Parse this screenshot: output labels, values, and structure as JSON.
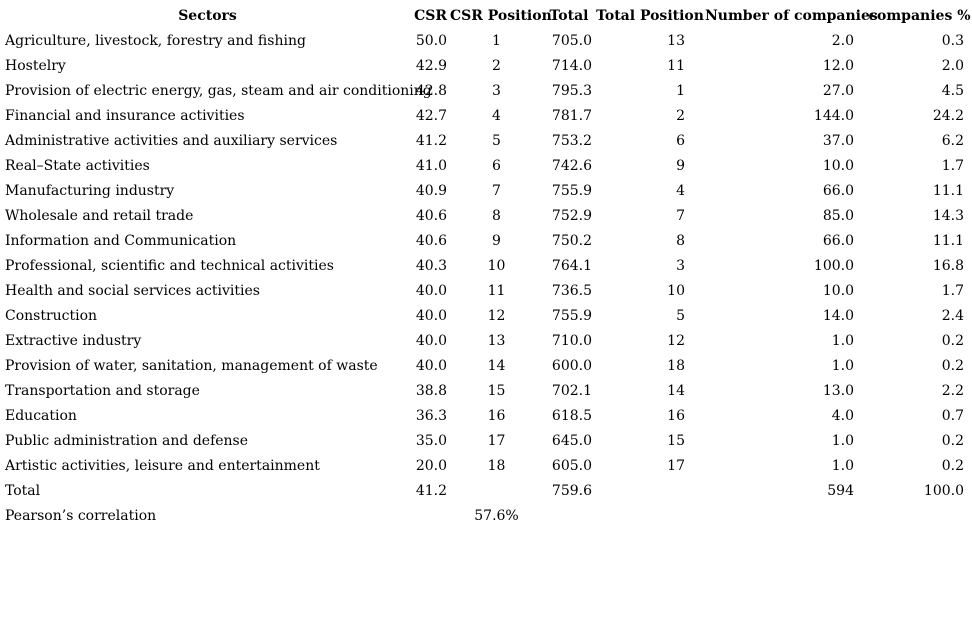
{
  "chart_data": {
    "type": "table",
    "columns": [
      "Sectors",
      "CSR",
      "CSR Position",
      "Total",
      "Total Position",
      "Number of companies",
      "companies %"
    ],
    "rows": [
      [
        "Agriculture, livestock, forestry and fishing",
        "50.0",
        "1",
        "705.0",
        "13",
        "2.0",
        "0.3"
      ],
      [
        "Hostelry",
        "42.9",
        "2",
        "714.0",
        "11",
        "12.0",
        "2.0"
      ],
      [
        "Provision of electric energy, gas, steam and air conditioning",
        "42.8",
        "3",
        "795.3",
        "1",
        "27.0",
        "4.5"
      ],
      [
        "Financial and insurance activities",
        "42.7",
        "4",
        "781.7",
        "2",
        "144.0",
        "24.2"
      ],
      [
        "Administrative activities and auxiliary services",
        "41.2",
        "5",
        "753.2",
        "6",
        "37.0",
        "6.2"
      ],
      [
        "Real–State activities",
        "41.0",
        "6",
        "742.6",
        "9",
        "10.0",
        "1.7"
      ],
      [
        "Manufacturing industry",
        "40.9",
        "7",
        "755.9",
        "4",
        "66.0",
        "11.1"
      ],
      [
        "Wholesale and retail trade",
        "40.6",
        "8",
        "752.9",
        "7",
        "85.0",
        "14.3"
      ],
      [
        "Information and Communication",
        "40.6",
        "9",
        "750.2",
        "8",
        "66.0",
        "11.1"
      ],
      [
        "Professional, scientific and technical activities",
        "40.3",
        "10",
        "764.1",
        "3",
        "100.0",
        "16.8"
      ],
      [
        "Health and social services activities",
        "40.0",
        "11",
        "736.5",
        "10",
        "10.0",
        "1.7"
      ],
      [
        "Construction",
        "40.0",
        "12",
        "755.9",
        "5",
        "14.0",
        "2.4"
      ],
      [
        "Extractive industry",
        "40.0",
        "13",
        "710.0",
        "12",
        "1.0",
        "0.2"
      ],
      [
        "Provision of water, sanitation, management of waste",
        "40.0",
        "14",
        "600.0",
        "18",
        "1.0",
        "0.2"
      ],
      [
        "Transportation and storage",
        "38.8",
        "15",
        "702.1",
        "14",
        "13.0",
        "2.2"
      ],
      [
        "Education",
        "36.3",
        "16",
        "618.5",
        "16",
        "4.0",
        "0.7"
      ],
      [
        "Public administration and defense",
        "35.0",
        "17",
        "645.0",
        "15",
        "1.0",
        "0.2"
      ],
      [
        "Artistic activities, leisure and entertainment",
        "20.0",
        "18",
        "605.0",
        "17",
        "1.0",
        "0.2"
      ]
    ],
    "total_row": [
      "Total",
      "41.2",
      "",
      "759.6",
      "",
      "594",
      "100.0"
    ],
    "pearson_row": [
      "Pearson’s correlation",
      "",
      "57.6%",
      "",
      "",
      "",
      ""
    ]
  }
}
